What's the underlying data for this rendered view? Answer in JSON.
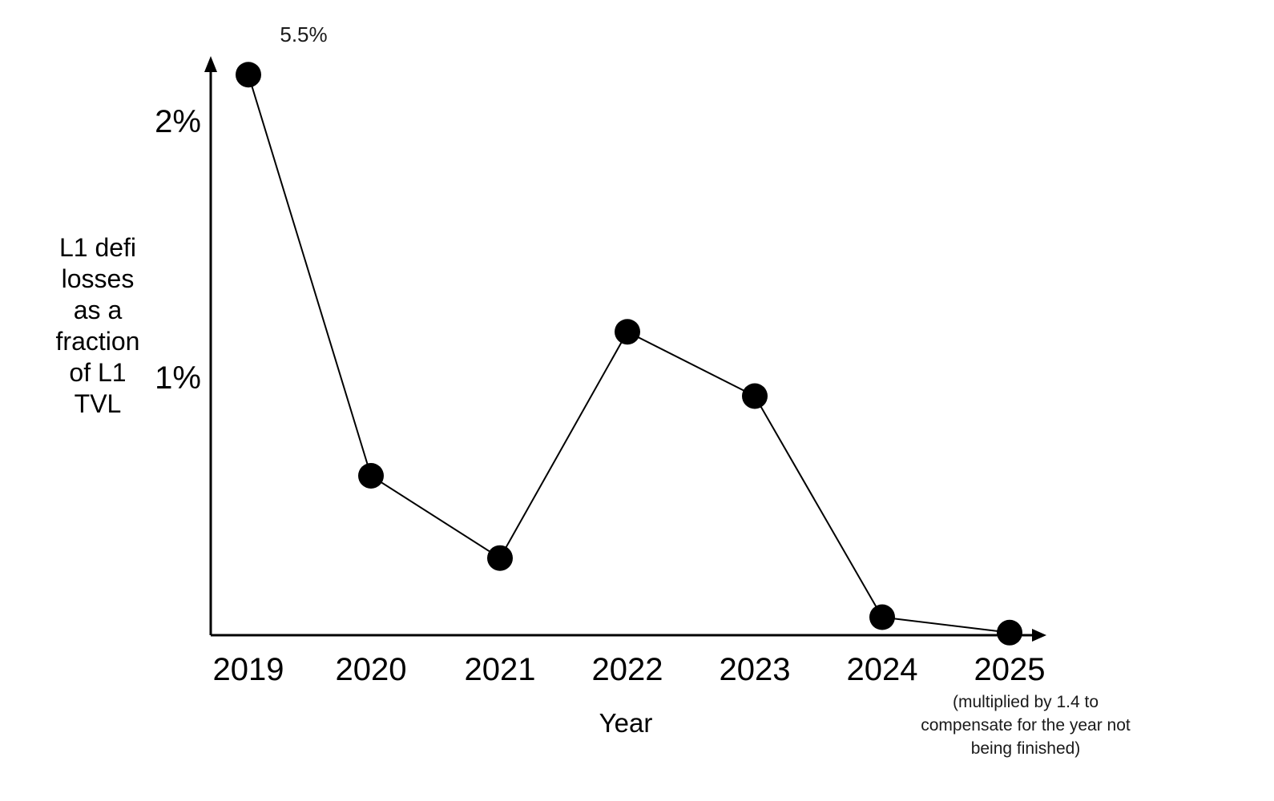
{
  "chart_data": {
    "type": "line",
    "title": "",
    "xlabel": "Year",
    "ylabel": "L1 defi losses as a fraction of L1 TVL",
    "ylabel_lines": [
      "L1 defi",
      "losses",
      "as a",
      "fraction",
      "of L1",
      "TVL"
    ],
    "categories": [
      "2019",
      "2020",
      "2021",
      "2022",
      "2023",
      "2024",
      "2025"
    ],
    "series": [
      {
        "name": "L1 defi losses as a fraction of L1 TVL",
        "values_percent": [
          5.5,
          0.62,
          0.3,
          1.18,
          0.93,
          0.07,
          0.01
        ],
        "plotted_percent": [
          2.18,
          0.62,
          0.3,
          1.18,
          0.93,
          0.07,
          0.01
        ]
      }
    ],
    "yticks": [
      {
        "label": "1%",
        "percent": 1
      },
      {
        "label": "2%",
        "percent": 2
      }
    ],
    "ylim_plotted": [
      0,
      2.24
    ],
    "annotations": {
      "point_2019_label": "5.5%",
      "note_2025": "(multiplied by 1.4 to\ncompensate for the year not\nbeing finished)"
    },
    "legend": "none",
    "grid": false,
    "marker": "filled-circle",
    "colors": {
      "line": "#000000",
      "marker": "#000000",
      "axis": "#000000",
      "text": "#000000",
      "background": "#ffffff"
    }
  }
}
